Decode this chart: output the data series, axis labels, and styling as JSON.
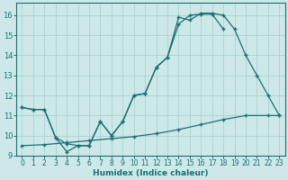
{
  "xlabel": "Humidex (Indice chaleur)",
  "xlim": [
    -0.5,
    23.5
  ],
  "ylim": [
    9,
    16.6
  ],
  "xticks": [
    0,
    1,
    2,
    3,
    4,
    5,
    6,
    7,
    8,
    9,
    10,
    11,
    12,
    13,
    14,
    15,
    16,
    17,
    18,
    19,
    20,
    21,
    22,
    23
  ],
  "yticks": [
    9,
    10,
    11,
    12,
    13,
    14,
    15,
    16
  ],
  "bg_color": "#cce8e8",
  "line_color": "#1a7070",
  "curve1_x": [
    0,
    1,
    2,
    3,
    4,
    5,
    6,
    7,
    8,
    9,
    10,
    11,
    12,
    13,
    14,
    15,
    16,
    17,
    18
  ],
  "curve1_y": [
    11.4,
    11.3,
    11.3,
    9.9,
    9.6,
    9.5,
    9.5,
    10.7,
    10.0,
    10.7,
    12.0,
    12.1,
    13.4,
    13.9,
    15.55,
    16.0,
    16.05,
    16.05,
    15.3
  ],
  "curve2_x": [
    0,
    1,
    2,
    3,
    4,
    5,
    6,
    7,
    8,
    9,
    10,
    11,
    12,
    13,
    14,
    15,
    16,
    17,
    18,
    19,
    20,
    21,
    22,
    23
  ],
  "curve2_y": [
    11.4,
    11.3,
    11.3,
    9.9,
    9.2,
    9.5,
    9.5,
    10.7,
    10.0,
    10.7,
    12.0,
    12.1,
    13.4,
    13.9,
    15.9,
    15.75,
    16.1,
    16.1,
    16.0,
    15.3,
    14.0,
    13.0,
    12.0,
    11.0
  ],
  "curve3_x": [
    0,
    2,
    4,
    6,
    8,
    10,
    12,
    14,
    16,
    18,
    20,
    22,
    23
  ],
  "curve3_y": [
    9.5,
    9.55,
    9.65,
    9.75,
    9.85,
    9.95,
    10.1,
    10.3,
    10.55,
    10.8,
    11.0,
    11.0,
    11.0
  ]
}
